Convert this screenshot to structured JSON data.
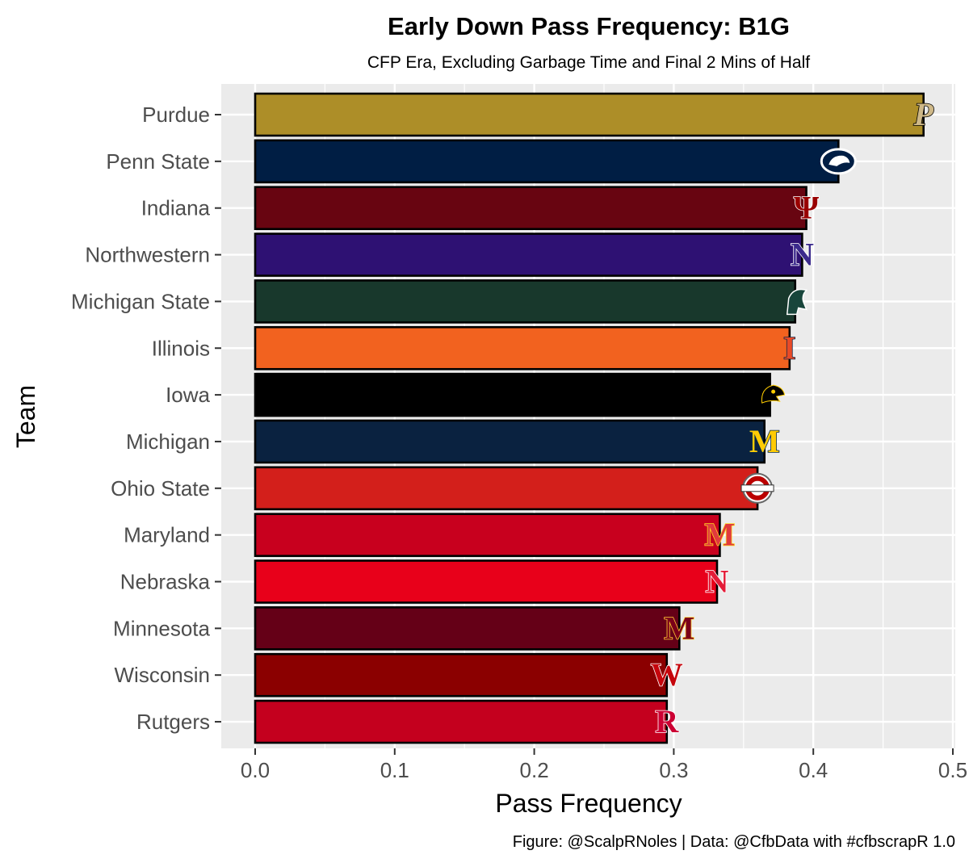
{
  "chart_data": {
    "type": "bar",
    "orientation": "horizontal",
    "title": "Early Down Pass Frequency: B1G",
    "subtitle": "CFP Era, Excluding Garbage Time and Final 2 Mins of Half",
    "xlabel": "Pass Frequency",
    "ylabel": "Team",
    "xlim": [
      0,
      0.5
    ],
    "xticks": [
      "0.0",
      "0.1",
      "0.2",
      "0.3",
      "0.4",
      "0.5"
    ],
    "caption": "Figure: @ScalpRNoles | Data: @CfbData with #cfbscrapR 1.0",
    "categories": [
      "Purdue",
      "Penn State",
      "Indiana",
      "Northwestern",
      "Michigan State",
      "Illinois",
      "Iowa",
      "Michigan",
      "Ohio State",
      "Maryland",
      "Nebraska",
      "Minnesota",
      "Wisconsin",
      "Rutgers"
    ],
    "values": [
      0.479,
      0.418,
      0.395,
      0.392,
      0.387,
      0.383,
      0.369,
      0.365,
      0.36,
      0.333,
      0.331,
      0.304,
      0.295,
      0.295
    ],
    "colors": [
      "#AD8E28",
      "#001E44",
      "#680511",
      "#2E1173",
      "#18382C",
      "#F2621F",
      "#000000",
      "#0A2240",
      "#D31F1B",
      "#C8001E",
      "#E8001A",
      "#650017",
      "#8B0000",
      "#C4001E"
    ],
    "logos": [
      {
        "glyph": "P",
        "icon": "purdue-logo-icon",
        "fill": "#CEB888",
        "stroke": "#000000"
      },
      {
        "glyph": "",
        "icon": "nittany-lion-logo-icon",
        "fill": "#001E44",
        "stroke": "#FFFFFF"
      },
      {
        "glyph": "Ψ",
        "icon": "indiana-trident-logo-icon",
        "fill": "#990000",
        "stroke": "#FFFFFF"
      },
      {
        "glyph": "N",
        "icon": "northwestern-n-logo-icon",
        "fill": "#3B2A8C",
        "stroke": "#FFFFFF"
      },
      {
        "glyph": "",
        "icon": "spartan-helmet-logo-icon",
        "fill": "#18453B",
        "stroke": "#FFFFFF"
      },
      {
        "glyph": "I",
        "icon": "illinois-block-i-logo-icon",
        "fill": "#E84A27",
        "stroke": "#13294B"
      },
      {
        "glyph": "",
        "icon": "hawkeye-logo-icon",
        "fill": "#000000",
        "stroke": "#FFCD00"
      },
      {
        "glyph": "M",
        "icon": "michigan-block-m-logo-icon",
        "fill": "#FFCB05",
        "stroke": "#00274C"
      },
      {
        "glyph": "",
        "icon": "ohio-state-logo-icon",
        "fill": "#BB0000",
        "stroke": "#666666"
      },
      {
        "glyph": "M",
        "icon": "maryland-m-logo-icon",
        "fill": "#E03A3E",
        "stroke": "#FFD520"
      },
      {
        "glyph": "N",
        "icon": "nebraska-n-logo-icon",
        "fill": "#E41C38",
        "stroke": "#FFFFFF"
      },
      {
        "glyph": "M",
        "icon": "minnesota-m-logo-icon",
        "fill": "#7A0019",
        "stroke": "#FFCC33"
      },
      {
        "glyph": "W",
        "icon": "wisconsin-w-logo-icon",
        "fill": "#C5050C",
        "stroke": "#FFFFFF"
      },
      {
        "glyph": "R",
        "icon": "rutgers-r-logo-icon",
        "fill": "#CC0033",
        "stroke": "#FFFFFF"
      }
    ],
    "grid": true
  }
}
